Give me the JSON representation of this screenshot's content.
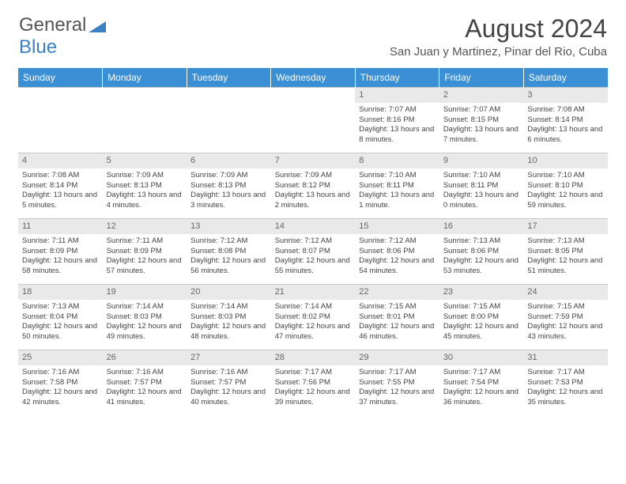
{
  "brand": {
    "part1": "General",
    "part2": "Blue"
  },
  "title": "August 2024",
  "location": "San Juan y Martinez, Pinar del Rio, Cuba",
  "colors": {
    "header_bg": "#3b8fd4",
    "header_text": "#ffffff",
    "daynum_bg": "#e9e9e9",
    "border": "#c8c8c8",
    "brand_blue": "#3b7fc4",
    "text": "#444444"
  },
  "day_headers": [
    "Sunday",
    "Monday",
    "Tuesday",
    "Wednesday",
    "Thursday",
    "Friday",
    "Saturday"
  ],
  "weeks": [
    [
      null,
      null,
      null,
      null,
      {
        "n": "1",
        "sr": "7:07 AM",
        "ss": "8:16 PM",
        "dl": "13 hours and 8 minutes."
      },
      {
        "n": "2",
        "sr": "7:07 AM",
        "ss": "8:15 PM",
        "dl": "13 hours and 7 minutes."
      },
      {
        "n": "3",
        "sr": "7:08 AM",
        "ss": "8:14 PM",
        "dl": "13 hours and 6 minutes."
      }
    ],
    [
      {
        "n": "4",
        "sr": "7:08 AM",
        "ss": "8:14 PM",
        "dl": "13 hours and 5 minutes."
      },
      {
        "n": "5",
        "sr": "7:09 AM",
        "ss": "8:13 PM",
        "dl": "13 hours and 4 minutes."
      },
      {
        "n": "6",
        "sr": "7:09 AM",
        "ss": "8:13 PM",
        "dl": "13 hours and 3 minutes."
      },
      {
        "n": "7",
        "sr": "7:09 AM",
        "ss": "8:12 PM",
        "dl": "13 hours and 2 minutes."
      },
      {
        "n": "8",
        "sr": "7:10 AM",
        "ss": "8:11 PM",
        "dl": "13 hours and 1 minute."
      },
      {
        "n": "9",
        "sr": "7:10 AM",
        "ss": "8:11 PM",
        "dl": "13 hours and 0 minutes."
      },
      {
        "n": "10",
        "sr": "7:10 AM",
        "ss": "8:10 PM",
        "dl": "12 hours and 59 minutes."
      }
    ],
    [
      {
        "n": "11",
        "sr": "7:11 AM",
        "ss": "8:09 PM",
        "dl": "12 hours and 58 minutes."
      },
      {
        "n": "12",
        "sr": "7:11 AM",
        "ss": "8:09 PM",
        "dl": "12 hours and 57 minutes."
      },
      {
        "n": "13",
        "sr": "7:12 AM",
        "ss": "8:08 PM",
        "dl": "12 hours and 56 minutes."
      },
      {
        "n": "14",
        "sr": "7:12 AM",
        "ss": "8:07 PM",
        "dl": "12 hours and 55 minutes."
      },
      {
        "n": "15",
        "sr": "7:12 AM",
        "ss": "8:06 PM",
        "dl": "12 hours and 54 minutes."
      },
      {
        "n": "16",
        "sr": "7:13 AM",
        "ss": "8:06 PM",
        "dl": "12 hours and 53 minutes."
      },
      {
        "n": "17",
        "sr": "7:13 AM",
        "ss": "8:05 PM",
        "dl": "12 hours and 51 minutes."
      }
    ],
    [
      {
        "n": "18",
        "sr": "7:13 AM",
        "ss": "8:04 PM",
        "dl": "12 hours and 50 minutes."
      },
      {
        "n": "19",
        "sr": "7:14 AM",
        "ss": "8:03 PM",
        "dl": "12 hours and 49 minutes."
      },
      {
        "n": "20",
        "sr": "7:14 AM",
        "ss": "8:03 PM",
        "dl": "12 hours and 48 minutes."
      },
      {
        "n": "21",
        "sr": "7:14 AM",
        "ss": "8:02 PM",
        "dl": "12 hours and 47 minutes."
      },
      {
        "n": "22",
        "sr": "7:15 AM",
        "ss": "8:01 PM",
        "dl": "12 hours and 46 minutes."
      },
      {
        "n": "23",
        "sr": "7:15 AM",
        "ss": "8:00 PM",
        "dl": "12 hours and 45 minutes."
      },
      {
        "n": "24",
        "sr": "7:15 AM",
        "ss": "7:59 PM",
        "dl": "12 hours and 43 minutes."
      }
    ],
    [
      {
        "n": "25",
        "sr": "7:16 AM",
        "ss": "7:58 PM",
        "dl": "12 hours and 42 minutes."
      },
      {
        "n": "26",
        "sr": "7:16 AM",
        "ss": "7:57 PM",
        "dl": "12 hours and 41 minutes."
      },
      {
        "n": "27",
        "sr": "7:16 AM",
        "ss": "7:57 PM",
        "dl": "12 hours and 40 minutes."
      },
      {
        "n": "28",
        "sr": "7:17 AM",
        "ss": "7:56 PM",
        "dl": "12 hours and 39 minutes."
      },
      {
        "n": "29",
        "sr": "7:17 AM",
        "ss": "7:55 PM",
        "dl": "12 hours and 37 minutes."
      },
      {
        "n": "30",
        "sr": "7:17 AM",
        "ss": "7:54 PM",
        "dl": "12 hours and 36 minutes."
      },
      {
        "n": "31",
        "sr": "7:17 AM",
        "ss": "7:53 PM",
        "dl": "12 hours and 35 minutes."
      }
    ]
  ],
  "labels": {
    "sunrise": "Sunrise:",
    "sunset": "Sunset:",
    "daylight": "Daylight:"
  }
}
